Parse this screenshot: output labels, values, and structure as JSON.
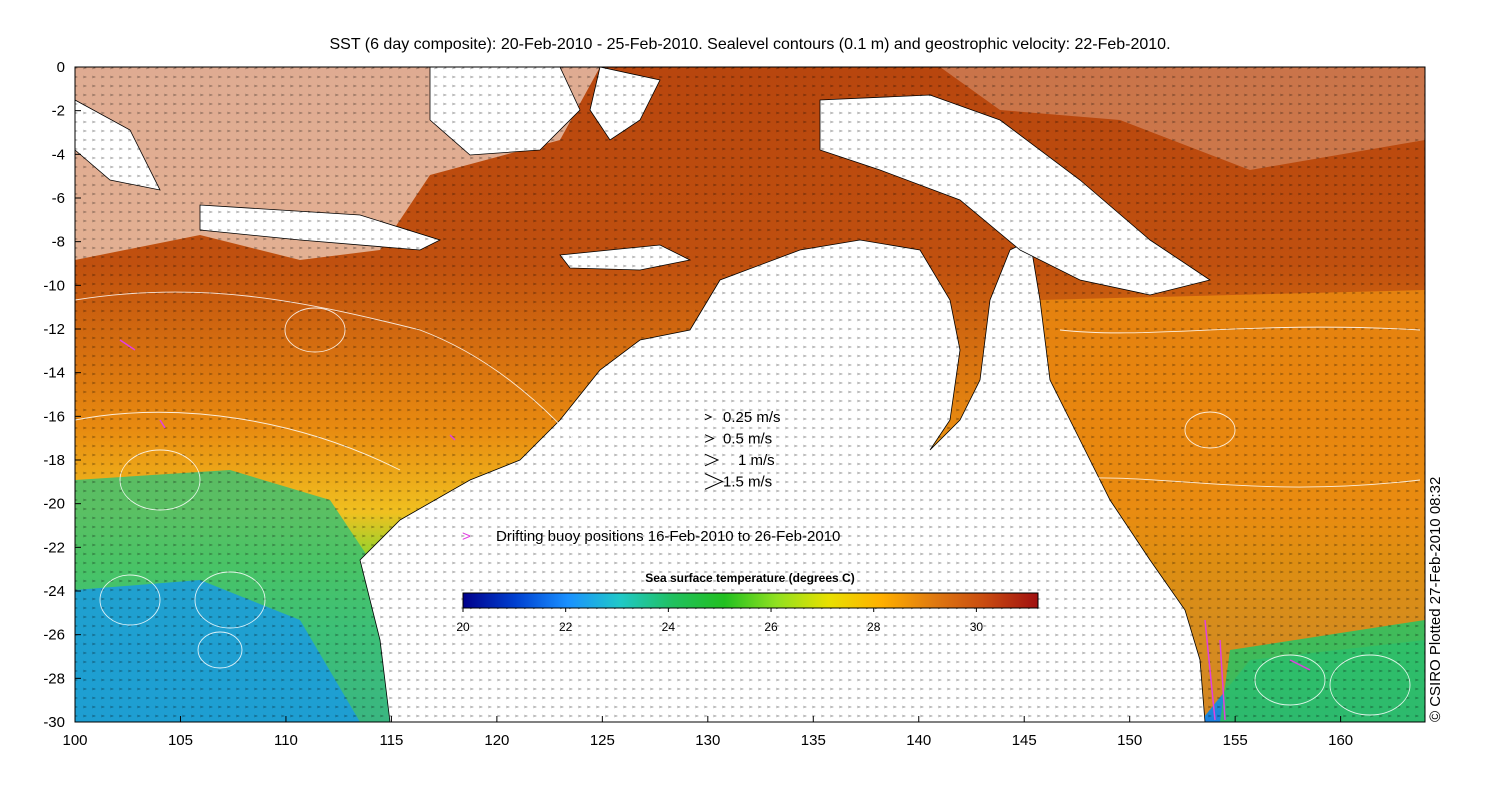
{
  "title": "SST (6 day composite): 20-Feb-2010 - 25-Feb-2010. Sealevel contours (0.1 m) and geostrophic velocity: 22-Feb-2010.",
  "x_axis": {
    "ticks": [
      "100",
      "105",
      "110",
      "115",
      "120",
      "125",
      "130",
      "135",
      "140",
      "145",
      "150",
      "155",
      "160"
    ],
    "range": [
      100,
      164
    ]
  },
  "y_axis": {
    "ticks": [
      "0",
      "-2",
      "-4",
      "-6",
      "-8",
      "-10",
      "-12",
      "-14",
      "-16",
      "-18",
      "-20",
      "-22",
      "-24",
      "-26",
      "-28",
      "-30"
    ],
    "range": [
      -30,
      0
    ]
  },
  "velocity_legend": [
    {
      "label": "0.25 m/s",
      "speed": 0.25
    },
    {
      "label": "0.5 m/s",
      "speed": 0.5
    },
    {
      "label": "1 m/s",
      "speed": 1
    },
    {
      "label": "1.5 m/s",
      "speed": 1.5
    }
  ],
  "buoy_legend": {
    "symbol": ">",
    "label": "Drifting buoy positions 16-Feb-2010 to 26-Feb-2010",
    "color": "#e040e0"
  },
  "colorbar": {
    "title": "Sea surface temperature (degrees C)",
    "ticks": [
      "20",
      "22",
      "24",
      "26",
      "28",
      "30"
    ],
    "range": [
      20,
      31.2
    ],
    "colors": [
      "#00008b",
      "#0040d0",
      "#1a90ff",
      "#20c8c8",
      "#20c060",
      "#22c020",
      "#90e020",
      "#e8e000",
      "#ffb000",
      "#e07a10",
      "#c84a10",
      "#a01010"
    ]
  },
  "credit": "© CSIRO Plotted 27-Feb-2010 08:32"
}
